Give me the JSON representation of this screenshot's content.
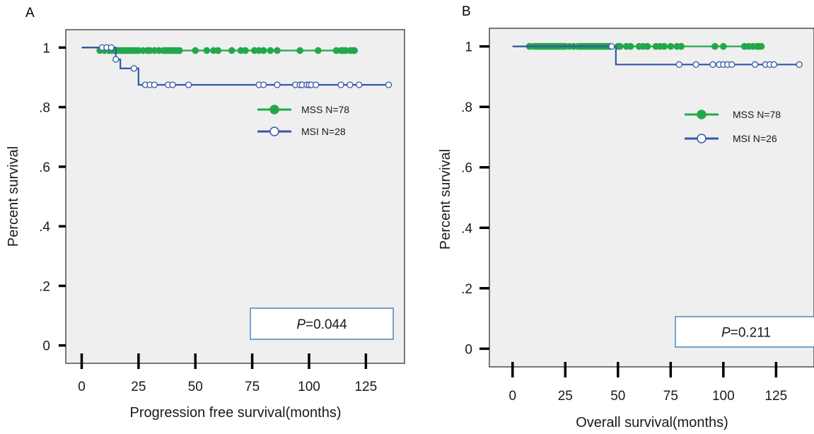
{
  "chart_data": [
    {
      "type": "line",
      "panel_label": "A",
      "xlabel": "Progression free survival(months)",
      "ylabel": "Percent  survival",
      "xlim": [
        -7,
        142
      ],
      "ylim": [
        -0.06,
        1.06
      ],
      "x_ticks": [
        0,
        25,
        50,
        75,
        100,
        125
      ],
      "x_tick_labels": [
        "0",
        "25",
        "50",
        "75",
        "100",
        "125"
      ],
      "y_ticks": [
        0,
        0.2,
        0.4,
        0.6,
        0.8,
        1
      ],
      "y_tick_labels": [
        "0",
        ".2",
        ".4",
        ".6",
        ".8",
        "1"
      ],
      "grid": false,
      "background": "#efefef",
      "legend_position": "right",
      "annotation": {
        "italic": "P",
        "text": "=0.044"
      },
      "series": [
        {
          "name": "MSS N=78",
          "color": "#22a84a",
          "marker": "filled-circle",
          "steps": [
            [
              0,
              1.0
            ],
            [
              8,
              0.99
            ]
          ],
          "end_x": 120,
          "censored": [
            8,
            10,
            12,
            13,
            14,
            15,
            16,
            17,
            18,
            19,
            20,
            21,
            22,
            23,
            24,
            25,
            27,
            29,
            30,
            32,
            34,
            36,
            37,
            38,
            39,
            40,
            41,
            42,
            43,
            50,
            55,
            58,
            60,
            66,
            70,
            72,
            76,
            78,
            80,
            83,
            86,
            96,
            104,
            112,
            114,
            115,
            116,
            118,
            119,
            120
          ]
        },
        {
          "name": "MSI  N=28",
          "color": "#3556a8",
          "marker": "open-circle",
          "steps": [
            [
              0,
              1.0
            ],
            [
              15,
              0.96
            ],
            [
              17,
              0.93
            ],
            [
              25,
              0.875
            ]
          ],
          "end_x": 135,
          "censored": [
            9,
            11,
            13,
            15,
            23,
            28,
            30,
            32,
            38,
            40,
            47,
            78,
            80,
            86,
            94,
            96,
            97,
            99,
            100,
            101,
            103,
            114,
            118,
            122,
            135
          ]
        }
      ]
    },
    {
      "type": "line",
      "panel_label": "B",
      "xlabel": "Overall survival(months)",
      "ylabel": "Percent  survival",
      "xlim": [
        -11,
        143
      ],
      "ylim": [
        -0.06,
        1.06
      ],
      "x_ticks": [
        0,
        25,
        50,
        75,
        100,
        125
      ],
      "x_tick_labels": [
        "0",
        "25",
        "50",
        "75",
        "100",
        "125"
      ],
      "y_ticks": [
        0,
        0.2,
        0.4,
        0.6,
        0.8,
        1
      ],
      "y_tick_labels": [
        "0",
        ".2",
        ".4",
        ".6",
        ".8",
        "1"
      ],
      "grid": false,
      "background": "#efefef",
      "legend_position": "right",
      "annotation": {
        "italic": "P",
        "text": "=0.211"
      },
      "series": [
        {
          "name": "MSS N=78",
          "color": "#22a84a",
          "marker": "filled-circle",
          "steps": [
            [
              0,
              1.0
            ]
          ],
          "end_x": 118,
          "censored": [
            8,
            10,
            11,
            12,
            13,
            14,
            15,
            16,
            17,
            18,
            19,
            20,
            21,
            22,
            23,
            24,
            25,
            27,
            29,
            31,
            32,
            33,
            34,
            35,
            36,
            37,
            38,
            39,
            40,
            41,
            42,
            43,
            44,
            45,
            46,
            50,
            51,
            54,
            56,
            60,
            62,
            64,
            68,
            70,
            72,
            75,
            78,
            80,
            96,
            100,
            110,
            112,
            114,
            116,
            117,
            118
          ]
        },
        {
          "name": "MSI  N=26",
          "color": "#3556a8",
          "marker": "open-circle",
          "steps": [
            [
              0,
              1.0
            ],
            [
              49,
              0.94
            ]
          ],
          "end_x": 136,
          "censored": [
            47,
            79,
            87,
            95,
            98,
            100,
            102,
            104,
            115,
            120,
            122,
            124,
            136
          ]
        }
      ]
    }
  ]
}
